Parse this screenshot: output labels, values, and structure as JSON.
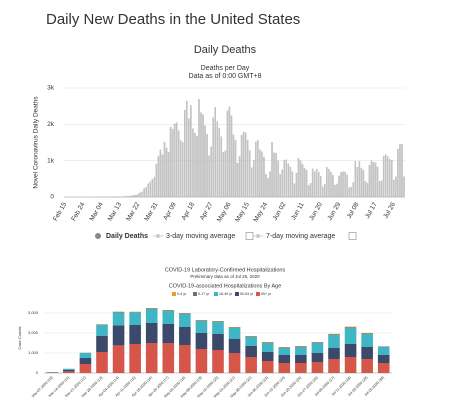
{
  "page_title": "Daily New Deaths in the United States",
  "chart_data": [
    {
      "type": "bar",
      "title": "Daily Deaths",
      "subtitle": "Deaths per Day",
      "note": "Data as of 0:00 GMT+8",
      "y_label": "Novel Coronavirus Daily Deaths",
      "color": "#c4c4c4",
      "grid": true,
      "legend": [
        "Daily Deaths",
        "3-day moving average",
        "7-day moving average"
      ],
      "ylim": [
        0,
        3000
      ],
      "yticks": [
        0,
        {
          "value": 1000,
          "label": "1k"
        },
        {
          "value": 2000,
          "label": "2k"
        },
        {
          "value": 3000,
          "label": "3k"
        }
      ],
      "categories": [
        "Feb 15",
        null,
        null,
        null,
        null,
        null,
        null,
        null,
        null,
        "Feb 24",
        null,
        null,
        null,
        null,
        null,
        null,
        null,
        null,
        "Mar 04",
        null,
        null,
        null,
        null,
        null,
        null,
        null,
        null,
        "Mar 13",
        null,
        null,
        null,
        null,
        null,
        null,
        null,
        null,
        "Mar 22",
        null,
        null,
        null,
        null,
        null,
        null,
        null,
        null,
        "Mar 31",
        null,
        null,
        null,
        null,
        null,
        null,
        null,
        null,
        "Apr 09",
        null,
        null,
        null,
        null,
        null,
        null,
        null,
        null,
        "Apr 18",
        null,
        null,
        null,
        null,
        null,
        null,
        null,
        null,
        "Apr 27",
        null,
        null,
        null,
        null,
        null,
        null,
        null,
        null,
        "May 06",
        null,
        null,
        null,
        null,
        null,
        null,
        null,
        null,
        "May 15",
        null,
        null,
        null,
        null,
        null,
        null,
        null,
        null,
        "May 24",
        null,
        null,
        null,
        null,
        null,
        null,
        null,
        null,
        "Jun 02",
        null,
        null,
        null,
        null,
        null,
        null,
        null,
        null,
        "Jun 11",
        null,
        null,
        null,
        null,
        null,
        null,
        null,
        null,
        "Jun 20",
        null,
        null,
        null,
        null,
        null,
        null,
        null,
        null,
        "Jun 29",
        null,
        null,
        null,
        null,
        null,
        null,
        null,
        null,
        "Jul 08",
        null,
        null,
        null,
        null,
        null,
        null,
        null,
        null,
        "Jul 17",
        null,
        null,
        null,
        null,
        null,
        null,
        null,
        null,
        "Jul 26",
        null,
        null,
        null,
        null,
        null
      ],
      "values": [
        0,
        0,
        0,
        0,
        0,
        0,
        0,
        0,
        0,
        0,
        0,
        0,
        0,
        0,
        1,
        0,
        1,
        1,
        1,
        1,
        1,
        2,
        2,
        3,
        4,
        5,
        7,
        10,
        11,
        9,
        17,
        23,
        26,
        38,
        53,
        51,
        82,
        121,
        144,
        236,
        267,
        371,
        423,
        485,
        548,
        906,
        1130,
        1300,
        1160,
        1510,
        1350,
        1240,
        1920,
        1870,
        2020,
        2050,
        1830,
        1560,
        1510,
        2390,
        2640,
        2160,
        2520,
        1880,
        1760,
        1680,
        2690,
        2320,
        2260,
        1960,
        1730,
        1140,
        1380,
        2180,
        2470,
        2080,
        1900,
        1660,
        1230,
        1270,
        2370,
        2480,
        2240,
        1710,
        1560,
        930,
        1120,
        1700,
        1790,
        1770,
        1570,
        1280,
        810,
        1010,
        1520,
        1560,
        1300,
        1250,
        1100,
        630,
        510,
        700,
        1510,
        1220,
        1210,
        1000,
        630,
        750,
        1010,
        1030,
        910,
        830,
        700,
        370,
        660,
        1070,
        1000,
        900,
        800,
        740,
        320,
        380,
        780,
        700,
        770,
        690,
        570,
        280,
        350,
        820,
        760,
        690,
        600,
        330,
        360,
        580,
        680,
        700,
        690,
        610,
        260,
        270,
        400,
        990,
        820,
        980,
        800,
        740,
        430,
        380,
        880,
        1000,
        960,
        940,
        830,
        430,
        450,
        1130,
        1170,
        1110,
        1040,
        1010,
        470,
        560,
        1320,
        1450,
        1450,
        560
      ]
    },
    {
      "type": "bar",
      "stacked": true,
      "title": "COVID-19 Laboratory-Confirmed Hospitalizations",
      "subtitle": "Preliminary data as of Jul 25, 2020",
      "note": "COVID-19-associated Hospitalizations By Age",
      "y_label": "Case Counts",
      "grid": true,
      "ylim": [
        0,
        3500
      ],
      "yticks": [
        0,
        {
          "value": 1000,
          "label": "1,000"
        },
        {
          "value": 2000,
          "label": "2,000"
        },
        {
          "value": 3000,
          "label": "3,000"
        }
      ],
      "categories": [
        "Mar-07-2020 (10)",
        "Mar-14-2020 (11)",
        "Mar-21-2020 (12)",
        "Mar-28-2020 (13)",
        "Apr-04-2020 (14)",
        "Apr-11-2020 (15)",
        "Apr-18-2020 (16)",
        "Apr-25-2020 (17)",
        "May-02-2020 (18)",
        "May-09-2020 (19)",
        "May-16-2020 (20)",
        "May-23-2020 (21)",
        "May-30-2020 (22)",
        "Jun-06-2020 (23)",
        "Jun-13-2020 (24)",
        "Jun-20-2020 (25)",
        "Jun-27-2020 (26)",
        "Jul-04-2020 (27)",
        "Jul-11-2020 (28)",
        "Jul-18-2020 (29)",
        "Jul-25-2020 (30)"
      ],
      "series": [
        {
          "name": "0-4 yr",
          "color": "#e0a030",
          "values": [
            0,
            2,
            10,
            15,
            20,
            20,
            20,
            20,
            20,
            20,
            20,
            20,
            20,
            20,
            20,
            20,
            20,
            25,
            30,
            25,
            15
          ]
        },
        {
          "name": "5-17 yr",
          "color": "#6b6f80",
          "values": [
            0,
            3,
            10,
            20,
            25,
            25,
            30,
            30,
            30,
            30,
            30,
            25,
            25,
            25,
            25,
            30,
            30,
            35,
            40,
            30,
            20
          ]
        },
        {
          "name": "18-49 yr",
          "color": "#3fb5c6",
          "values": [
            10,
            60,
            250,
            550,
            650,
            620,
            700,
            650,
            650,
            600,
            600,
            550,
            450,
            450,
            350,
            400,
            500,
            650,
            800,
            650,
            400
          ]
        },
        {
          "name": "50-64 yr",
          "color": "#3b4a6b",
          "values": [
            15,
            70,
            300,
            800,
            1000,
            950,
            1000,
            950,
            900,
            800,
            800,
            700,
            550,
            450,
            400,
            400,
            450,
            550,
            650,
            600,
            400
          ]
        },
        {
          "name": "65+ yr",
          "color": "#d4574a",
          "values": [
            20,
            80,
            450,
            1050,
            1380,
            1450,
            1500,
            1500,
            1400,
            1200,
            1150,
            1000,
            800,
            600,
            500,
            500,
            550,
            700,
            800,
            700,
            500
          ]
        }
      ]
    }
  ]
}
